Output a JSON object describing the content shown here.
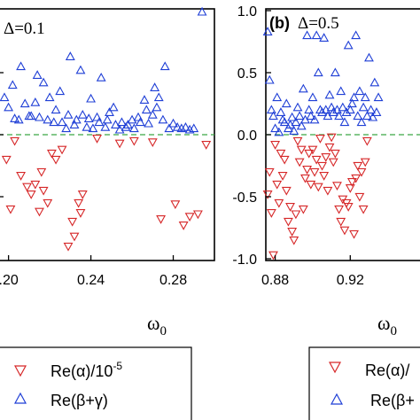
{
  "chart_data": [
    {
      "type": "scatter",
      "title": "Δ=0.1",
      "panel_label": "",
      "xlabel": "ω0",
      "xlabel_base": "ω",
      "xlabel_sub": "0",
      "ylabel": "",
      "xlim": [
        0.195,
        0.3
      ],
      "ylim": [
        -1.0,
        1.0
      ],
      "xticks": [
        0.2,
        0.24,
        0.28
      ],
      "xtick_labels": [
        ".20",
        "0.24",
        "0.28"
      ],
      "yticks": [],
      "reference_line": 0.0,
      "series": [
        {
          "name": "Re(α)/10-5",
          "marker": "triangle-down",
          "color": "#d62728",
          "points": [
            [
              0.199,
              -0.2
            ],
            [
              0.201,
              -0.6
            ],
            [
              0.203,
              -0.05
            ],
            [
              0.206,
              -0.33
            ],
            [
              0.209,
              -0.42
            ],
            [
              0.211,
              -0.48
            ],
            [
              0.213,
              -0.4
            ],
            [
              0.215,
              -0.62
            ],
            [
              0.216,
              -0.3
            ],
            [
              0.217,
              -0.45
            ],
            [
              0.219,
              -0.55
            ],
            [
              0.221,
              -0.15
            ],
            [
              0.223,
              -0.2
            ],
            [
              0.226,
              -0.12
            ],
            [
              0.229,
              -0.9
            ],
            [
              0.231,
              -0.7
            ],
            [
              0.232,
              -0.82
            ],
            [
              0.234,
              -0.55
            ],
            [
              0.235,
              -0.63
            ],
            [
              0.236,
              -0.48
            ],
            [
              0.243,
              -0.03
            ],
            [
              0.254,
              -0.07
            ],
            [
              0.261,
              -0.05
            ],
            [
              0.27,
              -0.06
            ],
            [
              0.274,
              -0.68
            ],
            [
              0.281,
              -0.56
            ],
            [
              0.285,
              -0.73
            ],
            [
              0.288,
              -0.66
            ],
            [
              0.292,
              -0.64
            ],
            [
              0.296,
              -0.08
            ]
          ]
        },
        {
          "name": "Re(β+γ)",
          "marker": "triangle-up",
          "color": "#1f3fd6",
          "points": [
            [
              0.198,
              0.3
            ],
            [
              0.2,
              0.22
            ],
            [
              0.202,
              0.4
            ],
            [
              0.203,
              0.13
            ],
            [
              0.205,
              0.12
            ],
            [
              0.206,
              0.55
            ],
            [
              0.208,
              0.25
            ],
            [
              0.21,
              0.15
            ],
            [
              0.211,
              0.15
            ],
            [
              0.213,
              0.26
            ],
            [
              0.214,
              0.48
            ],
            [
              0.215,
              0.14
            ],
            [
              0.217,
              0.42
            ],
            [
              0.219,
              0.12
            ],
            [
              0.22,
              0.3
            ],
            [
              0.222,
              0.1
            ],
            [
              0.223,
              0.2
            ],
            [
              0.225,
              0.35
            ],
            [
              0.226,
              0.1
            ],
            [
              0.228,
              0.05
            ],
            [
              0.229,
              0.16
            ],
            [
              0.23,
              0.63
            ],
            [
              0.232,
              0.08
            ],
            [
              0.233,
              0.12
            ],
            [
              0.235,
              0.52
            ],
            [
              0.236,
              0.16
            ],
            [
              0.238,
              0.06
            ],
            [
              0.239,
              0.13
            ],
            [
              0.24,
              0.29
            ],
            [
              0.241,
              0.05
            ],
            [
              0.243,
              0.14
            ],
            [
              0.244,
              0.1
            ],
            [
              0.245,
              0.46
            ],
            [
              0.247,
              0.06
            ],
            [
              0.248,
              0.12
            ],
            [
              0.249,
              0.18
            ],
            [
              0.251,
              0.22
            ],
            [
              0.252,
              0.08
            ],
            [
              0.254,
              0.04
            ],
            [
              0.255,
              0.1
            ],
            [
              0.257,
              0.06
            ],
            [
              0.258,
              0.08
            ],
            [
              0.26,
              0.12
            ],
            [
              0.261,
              0.05
            ],
            [
              0.263,
              0.14
            ],
            [
              0.264,
              0.1
            ],
            [
              0.266,
              0.28
            ],
            [
              0.267,
              0.2
            ],
            [
              0.268,
              0.09
            ],
            [
              0.27,
              0.16
            ],
            [
              0.271,
              0.38
            ],
            [
              0.272,
              0.22
            ],
            [
              0.273,
              0.3
            ],
            [
              0.275,
              0.12
            ],
            [
              0.276,
              0.55
            ],
            [
              0.278,
              0.05
            ],
            [
              0.28,
              0.09
            ],
            [
              0.282,
              0.06
            ],
            [
              0.284,
              0.05
            ],
            [
              0.286,
              0.06
            ],
            [
              0.288,
              0.04
            ],
            [
              0.29,
              0.05
            ],
            [
              0.294,
              0.99
            ]
          ]
        }
      ]
    },
    {
      "type": "scatter",
      "title": "Δ=0.5",
      "panel_label": "(b)",
      "xlabel": "ω0",
      "xlabel_base": "ω",
      "xlabel_sub": "0",
      "ylabel": "",
      "xlim": [
        0.875,
        0.96
      ],
      "ylim": [
        -1.0,
        1.0
      ],
      "xticks": [
        0.88,
        0.92
      ],
      "xtick_labels": [
        "0.88",
        "0.92"
      ],
      "yticks": [
        -1.0,
        -0.5,
        0.0,
        0.5,
        1.0
      ],
      "ytick_labels": [
        "-1.0",
        "-0.5",
        "0.0",
        "0.5",
        "1.0"
      ],
      "reference_line": 0.0,
      "series": [
        {
          "name": "Re(α)/10-5",
          "marker": "triangle-down",
          "color": "#d62728",
          "points": [
            [
              0.876,
              -0.48
            ],
            [
              0.877,
              -0.3
            ],
            [
              0.878,
              -0.63
            ],
            [
              0.879,
              -0.97
            ],
            [
              0.88,
              -0.08
            ],
            [
              0.881,
              -0.4
            ],
            [
              0.882,
              -0.55
            ],
            [
              0.883,
              -0.15
            ],
            [
              0.884,
              -0.33
            ],
            [
              0.885,
              -0.2
            ],
            [
              0.886,
              -0.45
            ],
            [
              0.887,
              -0.7
            ],
            [
              0.888,
              -0.58
            ],
            [
              0.889,
              -0.78
            ],
            [
              0.89,
              -0.85
            ],
            [
              0.891,
              -0.64
            ],
            [
              0.892,
              -0.05
            ],
            [
              0.893,
              -0.22
            ],
            [
              0.894,
              -0.12
            ],
            [
              0.895,
              -0.6
            ],
            [
              0.896,
              -0.35
            ],
            [
              0.897,
              -0.28
            ],
            [
              0.898,
              -0.15
            ],
            [
              0.899,
              -0.4
            ],
            [
              0.9,
              -0.12
            ],
            [
              0.901,
              -0.3
            ],
            [
              0.902,
              -0.2
            ],
            [
              0.903,
              -0.42
            ],
            [
              0.904,
              -0.03
            ],
            [
              0.905,
              -0.25
            ],
            [
              0.906,
              -0.33
            ],
            [
              0.907,
              -0.18
            ],
            [
              0.908,
              -0.45
            ],
            [
              0.909,
              -0.1
            ],
            [
              0.91,
              -0.02
            ],
            [
              0.911,
              -0.22
            ],
            [
              0.912,
              -0.15
            ],
            [
              0.913,
              -0.41
            ],
            [
              0.914,
              -0.6
            ],
            [
              0.915,
              -0.7
            ],
            [
              0.916,
              -0.52
            ],
            [
              0.917,
              -0.77
            ],
            [
              0.918,
              -0.55
            ],
            [
              0.919,
              -0.58
            ],
            [
              0.92,
              -0.43
            ],
            [
              0.921,
              -0.38
            ],
            [
              0.922,
              -0.8
            ],
            [
              0.923,
              -0.35
            ],
            [
              0.924,
              -0.25
            ],
            [
              0.925,
              -0.5
            ],
            [
              0.926,
              -0.3
            ],
            [
              0.927,
              -0.6
            ],
            [
              0.928,
              -0.22
            ],
            [
              0.929,
              -0.05
            ]
          ]
        },
        {
          "name": "Re(β+γ)",
          "marker": "triangle-up",
          "color": "#1f3fd6",
          "points": [
            [
              0.876,
              0.83
            ],
            [
              0.877,
              0.44
            ],
            [
              0.878,
              0.2
            ],
            [
              0.879,
              0.15
            ],
            [
              0.88,
              0.05
            ],
            [
              0.881,
              0.3
            ],
            [
              0.882,
              0.02
            ],
            [
              0.883,
              0.18
            ],
            [
              0.884,
              0.12
            ],
            [
              0.885,
              0.1
            ],
            [
              0.886,
              0.25
            ],
            [
              0.887,
              0.05
            ],
            [
              0.888,
              0.08
            ],
            [
              0.889,
              0.14
            ],
            [
              0.89,
              0.03
            ],
            [
              0.891,
              0.1
            ],
            [
              0.892,
              0.22
            ],
            [
              0.893,
              0.15
            ],
            [
              0.894,
              0.07
            ],
            [
              0.895,
              0.37
            ],
            [
              0.896,
              0.12
            ],
            [
              0.897,
              0.8
            ],
            [
              0.898,
              0.2
            ],
            [
              0.899,
              0.15
            ],
            [
              0.9,
              0.3
            ],
            [
              0.901,
              0.12
            ],
            [
              0.902,
              0.8
            ],
            [
              0.903,
              0.5
            ],
            [
              0.904,
              0.2
            ],
            [
              0.905,
              0.18
            ],
            [
              0.906,
              0.78
            ],
            [
              0.907,
              0.2
            ],
            [
              0.908,
              0.15
            ],
            [
              0.909,
              0.32
            ],
            [
              0.91,
              0.22
            ],
            [
              0.911,
              0.18
            ],
            [
              0.912,
              0.5
            ],
            [
              0.913,
              0.2
            ],
            [
              0.914,
              0.15
            ],
            [
              0.915,
              0.35
            ],
            [
              0.916,
              0.22
            ],
            [
              0.917,
              0.1
            ],
            [
              0.918,
              0.18
            ],
            [
              0.919,
              0.72
            ],
            [
              0.92,
              0.2
            ],
            [
              0.921,
              0.25
            ],
            [
              0.922,
              0.3
            ],
            [
              0.923,
              0.8
            ],
            [
              0.924,
              0.15
            ],
            [
              0.925,
              0.35
            ],
            [
              0.926,
              0.1
            ],
            [
              0.927,
              0.22
            ],
            [
              0.928,
              0.3
            ],
            [
              0.929,
              0.15
            ],
            [
              0.93,
              0.62
            ],
            [
              0.931,
              0.2
            ],
            [
              0.932,
              0.14
            ],
            [
              0.933,
              0.42
            ],
            [
              0.934,
              0.18
            ],
            [
              0.935,
              0.3
            ]
          ]
        }
      ]
    }
  ],
  "legend_left": {
    "entries": [
      {
        "marker": "triangle-down",
        "color": "#d62728",
        "label_main": "Re(α)/10",
        "label_sup": "-5"
      },
      {
        "marker": "triangle-up",
        "color": "#1f3fd6",
        "label_main": "Re(β+γ)",
        "label_sup": ""
      }
    ]
  },
  "legend_right": {
    "entries": [
      {
        "marker": "triangle-down",
        "color": "#d62728",
        "label_main": "Re(α)/",
        "label_sup": ""
      },
      {
        "marker": "triangle-up",
        "color": "#1f3fd6",
        "label_main": "Re(β+",
        "label_sup": ""
      }
    ]
  }
}
